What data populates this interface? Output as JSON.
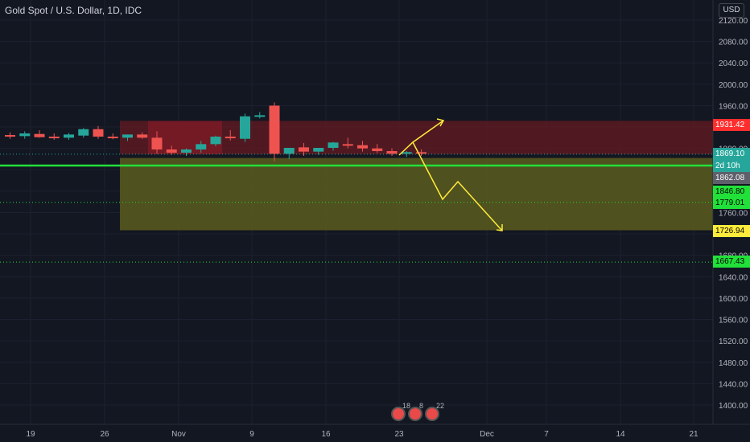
{
  "header": {
    "symbol_title": "Gold Spot / U.S. Dollar, 1D, IDC",
    "currency": "USD"
  },
  "colors": {
    "up": "#26a69a",
    "down": "#ef5350",
    "background": "#131722",
    "zone_red": "#5c1a22",
    "zone_olive": "#5a5c1d",
    "line_green": "#22e03a",
    "arrow": "#ffeb3b"
  },
  "price_axis": {
    "ticks": [
      "2120.00",
      "2080.00",
      "2040.00",
      "2000.00",
      "1960.00",
      "1920.00",
      "1880.00",
      "1840.00",
      "1800.00",
      "1760.00",
      "1720.00",
      "1680.00",
      "1640.00",
      "1600.00",
      "1560.00",
      "1520.00",
      "1480.00",
      "1440.00",
      "1400.00"
    ],
    "labels": [
      {
        "text": "1931.42",
        "price": 1931.42,
        "color": "#ff2e2e",
        "text_color": "#ffffff"
      },
      {
        "text": "1869.10",
        "price": 1869.1,
        "color": "#26a69a",
        "text_color": "#ffffff"
      },
      {
        "text": "2d 10h",
        "price": 1858,
        "color": "#26a69a",
        "text_color": "#ffffff"
      },
      {
        "text": "1862.08",
        "price": 1844,
        "color": "#5d606b",
        "text_color": "#ffffff"
      },
      {
        "text": "1846.80",
        "price": 1829,
        "color": "#22e03a",
        "text_color": "#000000"
      },
      {
        "text": "1779.01",
        "price": 1812,
        "color": "#22e03a",
        "text_color": "#000000"
      },
      {
        "text": "1726.94",
        "price": 1726.94,
        "color": "#ffeb3b",
        "text_color": "#000000"
      },
      {
        "text": "1667.43",
        "price": 1667.43,
        "color": "#22e03a",
        "text_color": "#000000"
      }
    ]
  },
  "time_axis": {
    "labels": [
      "19",
      "26",
      "Nov",
      "9",
      "16",
      "23",
      "Dec",
      "7",
      "14",
      "21"
    ]
  },
  "events": [
    "18",
    "8",
    "22"
  ]
}
